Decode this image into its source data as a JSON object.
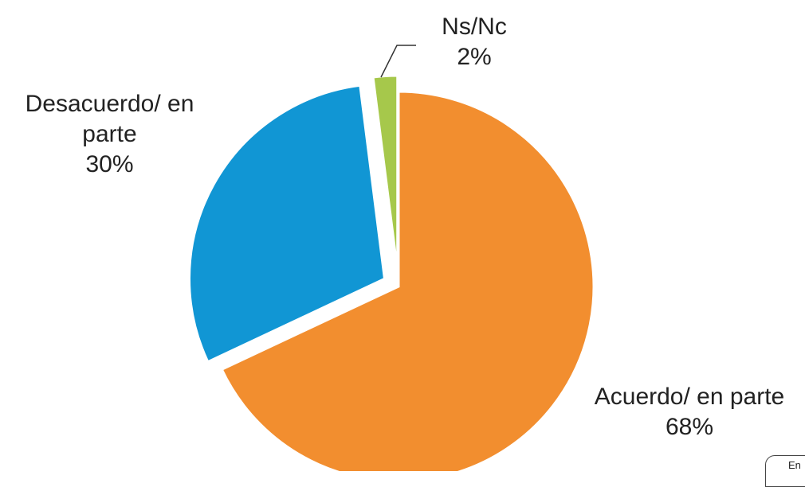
{
  "chart_data": {
    "type": "pie",
    "categories": [
      "Acuerdo/ en parte",
      "Desacuerdo/ en parte",
      "Ns/Nc"
    ],
    "values": [
      68,
      30,
      2
    ],
    "value_labels": [
      "68%",
      "30%",
      "2%"
    ],
    "colors": [
      "#F28E2F",
      "#1196D4",
      "#A6C84B"
    ],
    "exploded": [
      false,
      true,
      true
    ]
  },
  "corner_button": "En"
}
